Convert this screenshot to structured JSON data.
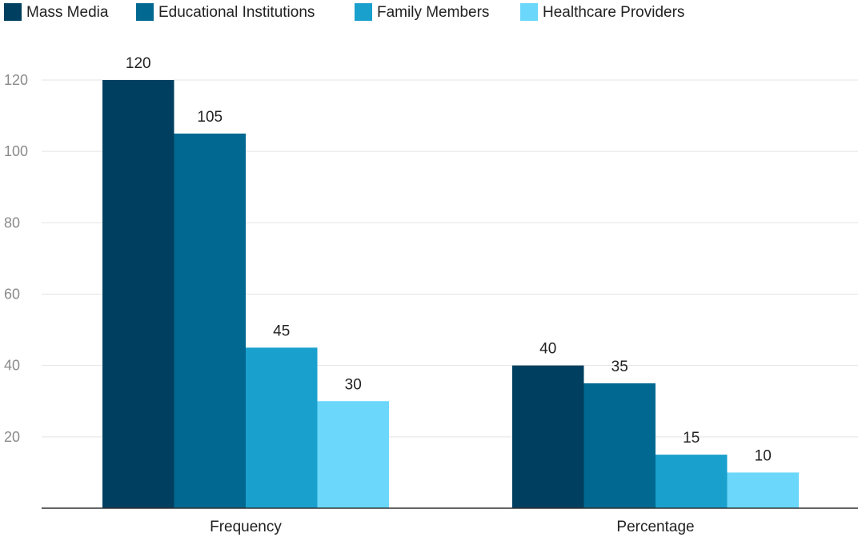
{
  "chart_data": {
    "type": "bar",
    "title": "",
    "xlabel": "",
    "ylabel": "",
    "categories": [
      "Frequency",
      "Percentage"
    ],
    "series": [
      {
        "name": "Mass Media",
        "color": "#003f5f",
        "values": [
          120,
          40
        ]
      },
      {
        "name": "Educational Institutions",
        "color": "#006891",
        "values": [
          105,
          35
        ]
      },
      {
        "name": "Family Members",
        "color": "#1aa0cc",
        "values": [
          45,
          15
        ]
      },
      {
        "name": "Healthcare Providers",
        "color": "#6bd7fb",
        "values": [
          30,
          10
        ]
      }
    ],
    "ylim": [
      0,
      120
    ],
    "yticks": [
      20,
      40,
      60,
      80,
      100,
      120
    ],
    "grid": true,
    "legend_position": "top-left",
    "data_labels": true
  }
}
